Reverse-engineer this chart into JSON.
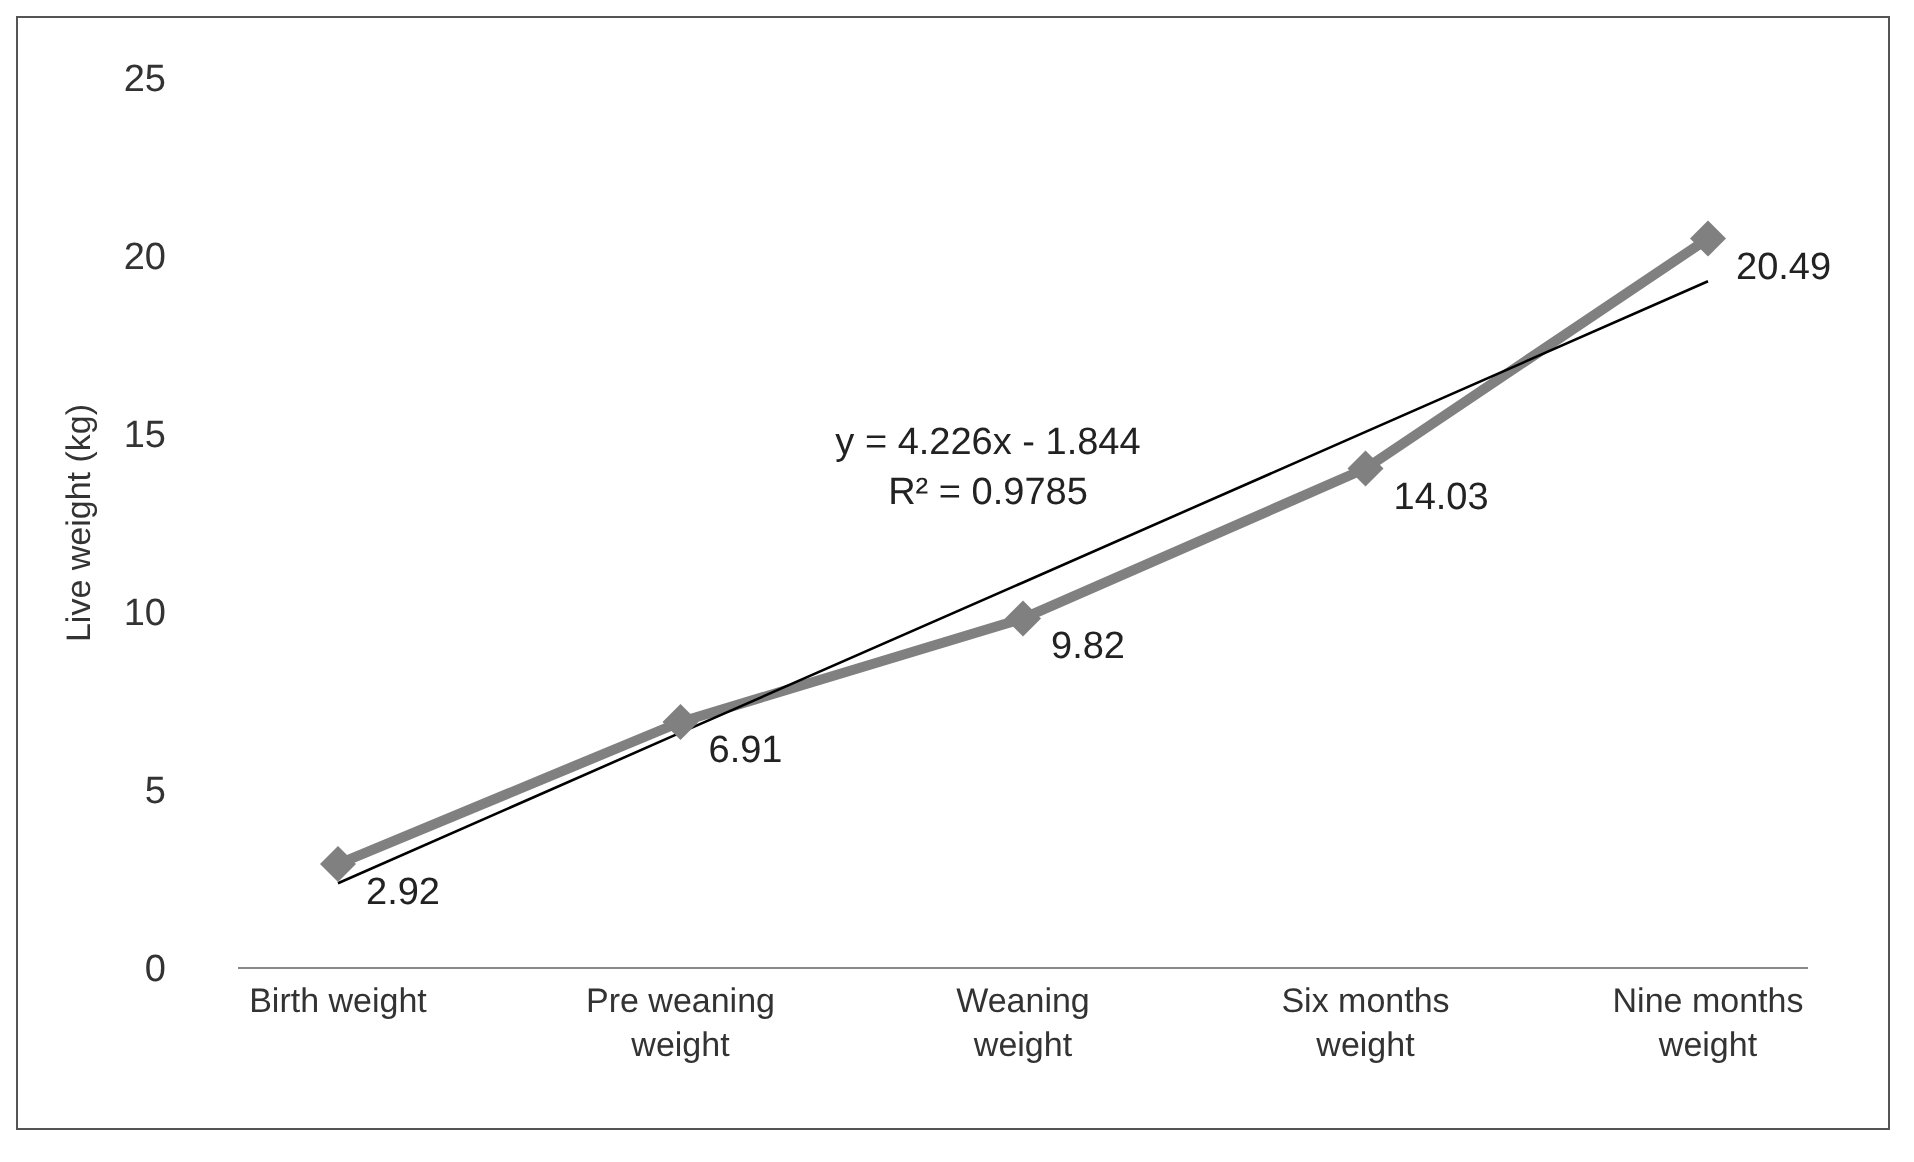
{
  "chart_data": {
    "type": "line",
    "ylabel": "Live weight (kg)",
    "categories": [
      "Birth weight",
      "Pre weaning weight",
      "Weaning weight",
      "Six months weight",
      "Nine months weight"
    ],
    "series": [
      {
        "color": "#808080",
        "values": [
          2.92,
          6.91,
          9.82,
          14.03,
          20.49
        ],
        "value_labels": [
          "2.92",
          "6.91",
          "9.82",
          "14.03",
          "20.49"
        ],
        "marker": "diamond"
      },
      {
        "type": "line",
        "color": "#000000",
        "values": [
          2.38,
          6.61,
          10.83,
          15.06,
          19.29
        ],
        "marker": "none"
      }
    ],
    "annotations": [
      "y = 4.226x - 1.844",
      "R² = 0.9785"
    ],
    "ylim": [
      0,
      25
    ],
    "yticks": [
      0,
      5,
      10,
      15,
      20,
      25
    ],
    "grid": false,
    "line_style": "solid"
  }
}
